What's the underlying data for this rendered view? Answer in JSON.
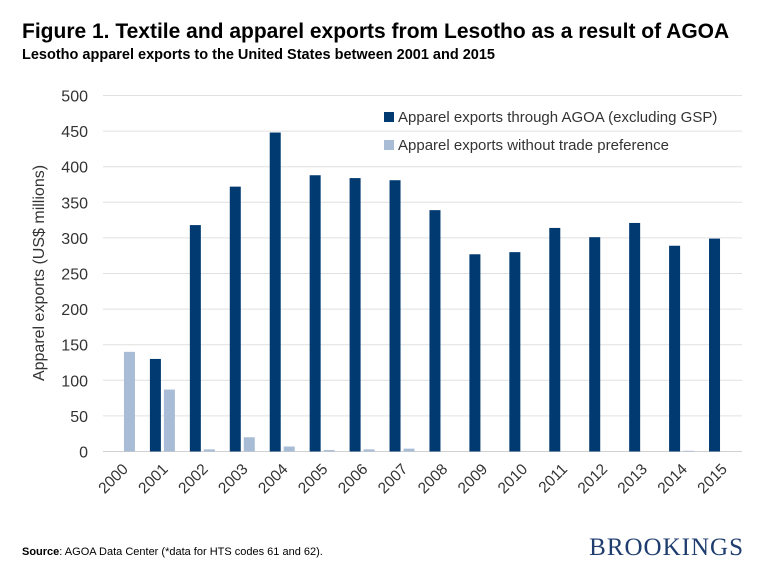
{
  "title": "Figure 1. Textile and apparel exports from Lesotho as a result of AGOA",
  "subtitle": "Lesotho apparel exports to the United States between 2001 and 2015",
  "source_label": "Source",
  "source_text": ": AGOA Data Center (*data for HTS codes 61 and 62).",
  "brand": "BROOKINGS",
  "colors": {
    "agoa": "#003a70",
    "no_pref": "#a8bcd6",
    "grid": "#e0e0e0"
  },
  "chart_data": {
    "type": "bar",
    "ylabel": "Apparel exports (US$ millions)",
    "ylim": [
      0,
      500
    ],
    "yticks": [
      0,
      50,
      100,
      150,
      200,
      250,
      300,
      350,
      400,
      450,
      500
    ],
    "grid": true,
    "legend_placement": "top-right",
    "categories": [
      "2000",
      "2001",
      "2002",
      "2003",
      "2004",
      "2005",
      "2006",
      "2007",
      "2008",
      "2009",
      "2010",
      "2011",
      "2012",
      "2013",
      "2014",
      "2015"
    ],
    "series": [
      {
        "name": "Apparel exports through AGOA (excluding GSP)",
        "values": [
          0,
          130,
          318,
          372,
          448,
          388,
          384,
          381,
          339,
          277,
          280,
          314,
          301,
          321,
          289,
          299
        ]
      },
      {
        "name": "Apparel exports without trade preference",
        "values": [
          140,
          87,
          3,
          20,
          7,
          2,
          3,
          4,
          0,
          0,
          0,
          0,
          0,
          0,
          1,
          0
        ]
      }
    ]
  }
}
